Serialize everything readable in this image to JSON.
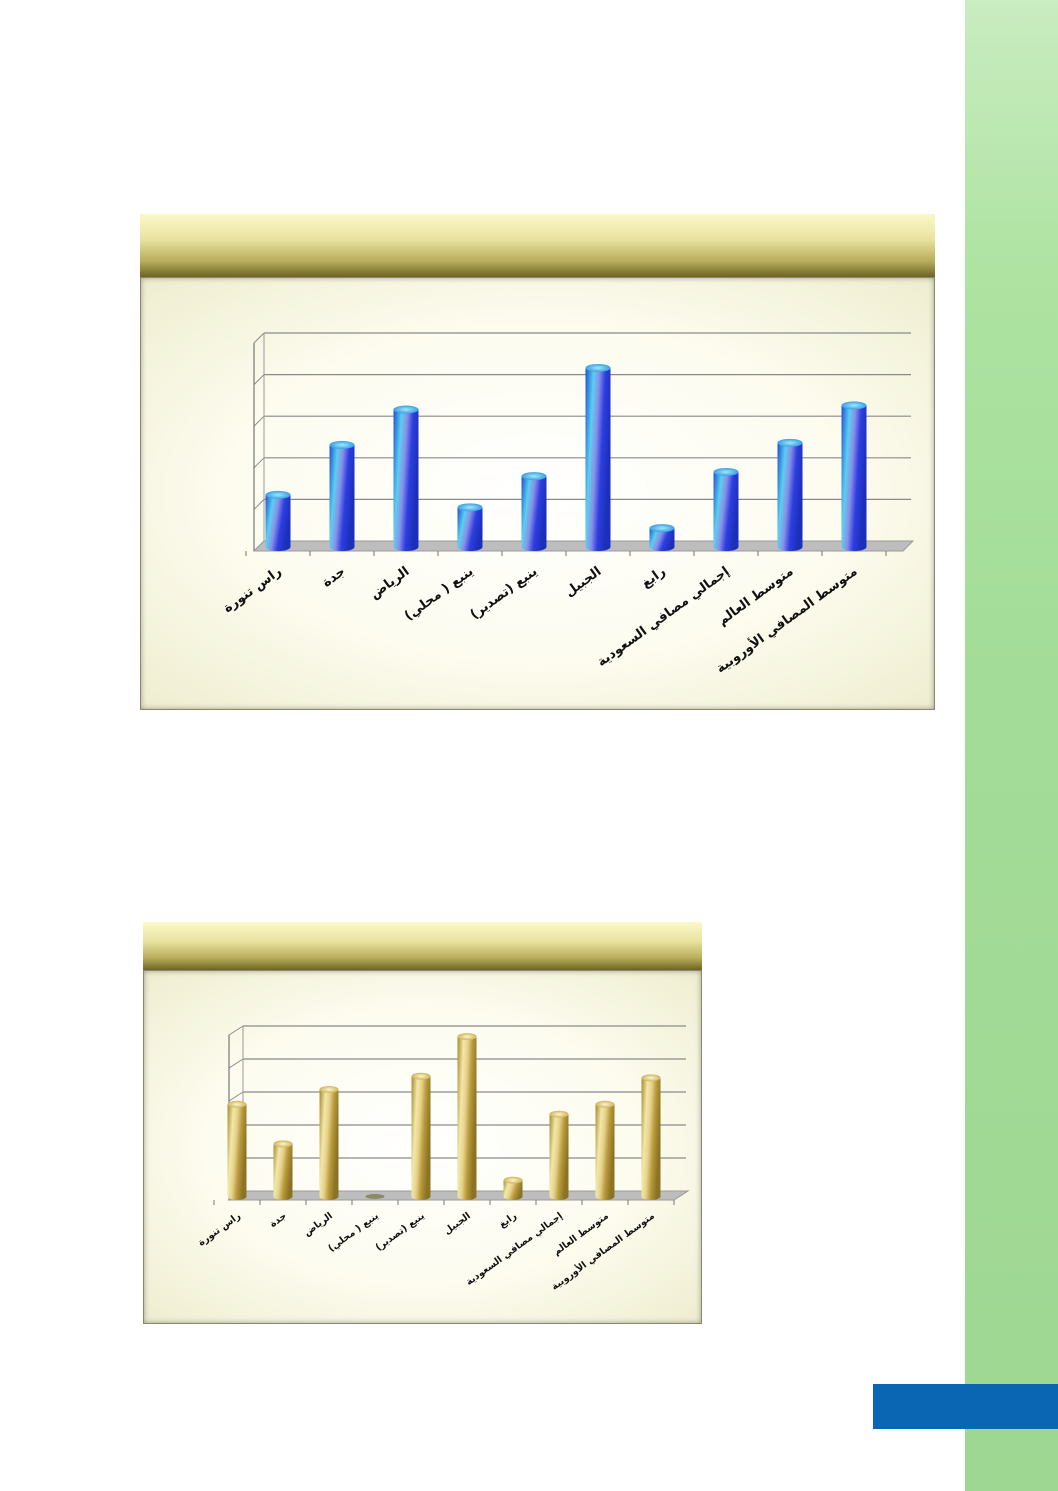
{
  "charts": [
    {
      "type": "bar",
      "categories": [
        "راس تنورة",
        "جدة",
        "الرياض",
        "ينبع ( محلي)",
        "ينبع (تصدير)",
        "الجبيل",
        "رابغ",
        "إجمالي مصافي السعودية",
        "متوسط العالم",
        "متوسط المصافي الأوروبية"
      ],
      "values": [
        1.35,
        2.55,
        3.4,
        1.05,
        1.8,
        4.4,
        0.55,
        1.9,
        2.6,
        3.5
      ],
      "ylim": [
        0,
        5
      ],
      "grid": true,
      "bar_style": "blue-cylinder"
    },
    {
      "type": "bar",
      "categories": [
        "راس تنورة",
        "جدة",
        "الرياض",
        "ينبع ( محلي)",
        "ينبع (تصدير)",
        "الجبيل",
        "رابغ",
        "إجمالي مصافي السعودية",
        "متوسط العالم",
        "متوسط المصافي الأوروبية"
      ],
      "values": [
        2.9,
        1.7,
        3.35,
        0.0,
        3.75,
        4.95,
        0.6,
        2.6,
        2.9,
        3.7
      ],
      "ylim": [
        0,
        5
      ],
      "grid": true,
      "bar_style": "gold-cylinder"
    }
  ],
  "colors": {
    "sidebar": "#a3dc98",
    "tab": "#0a66b3"
  }
}
